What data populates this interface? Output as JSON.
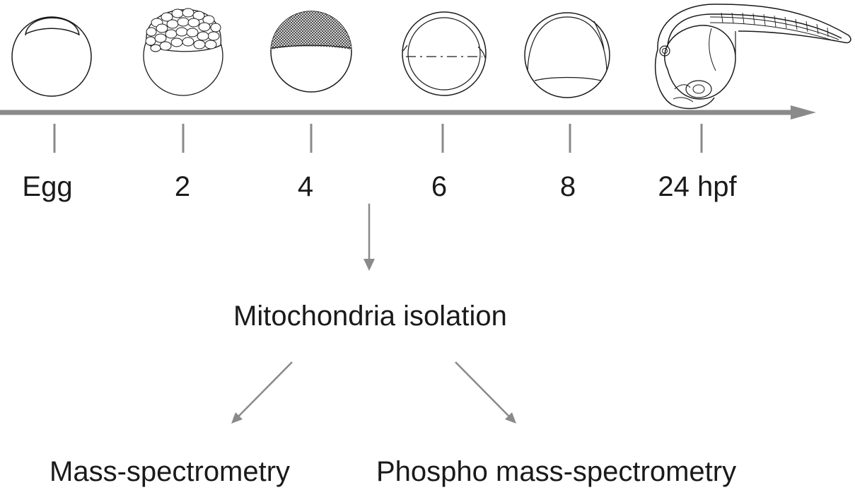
{
  "timeline": {
    "stages": [
      {
        "id": "egg",
        "label": "Egg"
      },
      {
        "id": "2",
        "label": "2"
      },
      {
        "id": "4",
        "label": "4"
      },
      {
        "id": "6",
        "label": "6"
      },
      {
        "id": "8",
        "label": "8"
      },
      {
        "id": "24",
        "label": "24 hpf"
      }
    ]
  },
  "workflow": {
    "isolation": "Mitochondria isolation",
    "branch_left": "Mass-spectrometry",
    "branch_right": "Phospho mass-spectrometry"
  },
  "colors": {
    "axis": "#8a8a8a",
    "outline": "#1a1a1a",
    "text": "#1a1a1a"
  }
}
